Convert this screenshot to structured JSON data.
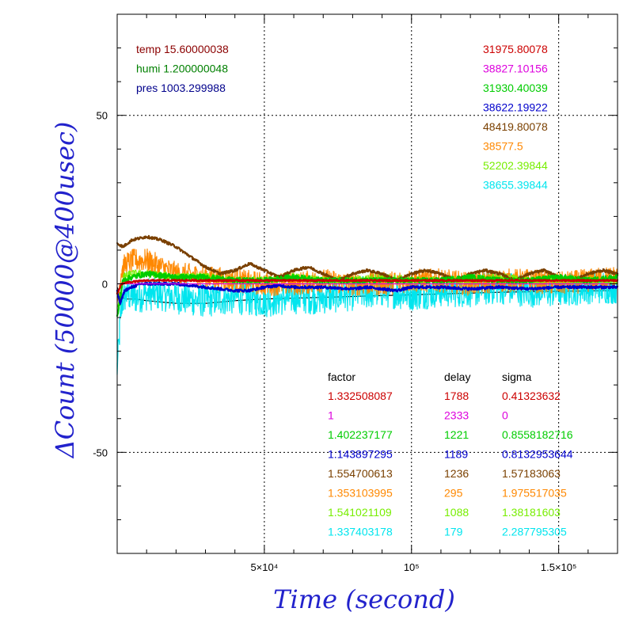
{
  "chart_data": {
    "type": "line",
    "xlabel": "Time (second)",
    "ylabel": "ΔCount (50000@400usec)",
    "xlim": [
      0,
      170000
    ],
    "ylim": [
      -80,
      80
    ],
    "xticks": [
      {
        "value": 50000,
        "label": "5×10⁴"
      },
      {
        "value": 100000,
        "label": "10⁵"
      },
      {
        "value": 150000,
        "label": "1.5×10⁵"
      }
    ],
    "yticks": [
      {
        "value": 50,
        "label": "50"
      },
      {
        "value": 0,
        "label": "0"
      },
      {
        "value": -50,
        "label": "-50"
      }
    ],
    "grid": "dotted",
    "env": [
      {
        "label": "temp 15.60000038",
        "color": "#8b0000"
      },
      {
        "label": "humi 1.200000048",
        "color": "#008000"
      },
      {
        "label": "pres 1003.299988",
        "color": "#00008b"
      }
    ],
    "baselines": [
      {
        "value": "31975.80078",
        "color": "#cc0000"
      },
      {
        "value": "38827.10156",
        "color": "#dd00dd"
      },
      {
        "value": "31930.40039",
        "color": "#00cc00"
      },
      {
        "value": "38622.19922",
        "color": "#0000cc"
      },
      {
        "value": "48419.80078",
        "color": "#7a4000"
      },
      {
        "value": "38577.5",
        "color": "#ff8800"
      },
      {
        "value": "52202.39844",
        "color": "#77ee00"
      },
      {
        "value": "38655.39844",
        "color": "#00e5ee"
      }
    ],
    "table_headers": [
      "factor",
      "delay",
      "sigma"
    ],
    "table_rows": [
      {
        "factor": "1.332508087",
        "delay": "1788",
        "sigma": "0.41323632",
        "color": "#cc0000"
      },
      {
        "factor": "1",
        "delay": "2333",
        "sigma": "0",
        "color": "#dd00dd"
      },
      {
        "factor": "1.402237177",
        "delay": "1221",
        "sigma": "0.8558182716",
        "color": "#00cc00"
      },
      {
        "factor": "1.143897295",
        "delay": "1189",
        "sigma": "0.8132953644",
        "color": "#0000cc"
      },
      {
        "factor": "1.554700613",
        "delay": "1236",
        "sigma": "1.57183063",
        "color": "#7a4000"
      },
      {
        "factor": "1.353103995",
        "delay": "295",
        "sigma": "1.975517035",
        "color": "#ff8800"
      },
      {
        "factor": "1.541021109",
        "delay": "1088",
        "sigma": "1.38181603",
        "color": "#77ee00"
      },
      {
        "factor": "1.337403178",
        "delay": "179",
        "sigma": "2.287795305",
        "color": "#00e5ee"
      }
    ],
    "series": [
      {
        "color": "#000000",
        "noise": 0.0,
        "x": [
          0,
          1500,
          3000,
          6000,
          10000,
          20000,
          30000,
          40000,
          50000,
          70000,
          90000,
          110000,
          130000,
          150000,
          170000
        ],
        "y": [
          -1,
          -4,
          -4.5,
          -4.5,
          -5,
          -5.8,
          -5.8,
          -5,
          -4.5,
          -4,
          -3.5,
          -3,
          -2.5,
          -2.2,
          -2
        ]
      },
      {
        "color": "#00e5ee",
        "noise": 5.0,
        "x": [
          0,
          1500,
          3000,
          6000,
          10000,
          15000,
          20000,
          30000,
          40000,
          50000,
          60000,
          70000,
          80000,
          90000,
          100000,
          110000,
          120000,
          130000,
          140000,
          150000,
          160000,
          170000
        ],
        "y": [
          -25,
          -6,
          -3,
          -4,
          -3,
          -3,
          -4,
          -5,
          -4,
          -5,
          -4,
          -4,
          -3,
          -2,
          -3,
          -2,
          -2,
          -1,
          -2,
          -2,
          -1,
          -1
        ]
      },
      {
        "color": "#ff8800",
        "noise": 3.5,
        "x": [
          0,
          1500,
          3000,
          6000,
          10000,
          15000,
          20000,
          30000,
          40000,
          50000,
          60000,
          70000,
          80000,
          90000,
          100000,
          110000,
          120000,
          130000,
          140000,
          150000,
          160000,
          170000
        ],
        "y": [
          -5,
          4,
          6,
          7,
          7,
          5,
          3,
          2,
          1,
          0,
          0,
          1,
          0,
          0,
          1,
          1,
          0,
          1,
          1,
          0,
          1,
          2
        ]
      },
      {
        "color": "#77ee00",
        "noise": 1.2,
        "x": [
          0,
          2000,
          5000,
          10000,
          20000,
          30000,
          40000,
          50000,
          60000,
          70000,
          80000,
          90000,
          100000,
          110000,
          120000,
          130000,
          140000,
          150000,
          160000,
          170000
        ],
        "y": [
          -8,
          2,
          3,
          3,
          2,
          2,
          1,
          1,
          2,
          1,
          1,
          2,
          1,
          1,
          1,
          2,
          1,
          1,
          1,
          1
        ]
      },
      {
        "color": "#7a4000",
        "noise": 0.4,
        "x": [
          0,
          2000,
          5000,
          10000,
          15000,
          20000,
          25000,
          30000,
          35000,
          40000,
          45000,
          50000,
          55000,
          60000,
          65000,
          70000,
          75000,
          80000,
          85000,
          90000,
          95000,
          100000,
          105000,
          110000,
          115000,
          120000,
          125000,
          130000,
          135000,
          140000,
          145000,
          150000,
          155000,
          160000,
          165000,
          170000
        ],
        "y": [
          12,
          11,
          13,
          14,
          13,
          11,
          8,
          5,
          3,
          4,
          6,
          4,
          2,
          4,
          5,
          3,
          1,
          3,
          4,
          3,
          1,
          3,
          4,
          3,
          1,
          3,
          4,
          3,
          1,
          3,
          4,
          2,
          1,
          3,
          4,
          3
        ]
      },
      {
        "color": "#00cc00",
        "noise": 0.8,
        "x": [
          0,
          2000,
          5000,
          10000,
          20000,
          30000,
          40000,
          50000,
          60000,
          70000,
          80000,
          90000,
          100000,
          110000,
          120000,
          130000,
          140000,
          150000,
          160000,
          170000
        ],
        "y": [
          -10,
          1,
          2,
          3,
          2,
          2,
          1,
          1,
          2,
          1,
          1,
          1,
          1,
          1,
          2,
          1,
          1,
          2,
          1,
          2
        ]
      },
      {
        "color": "#0000cc",
        "noise": 0.4,
        "x": [
          0,
          1000,
          2500,
          5000,
          8000,
          12000,
          20000,
          30000,
          40000,
          45000,
          50000,
          55000,
          60000,
          70000,
          80000,
          85000,
          90000,
          95000,
          100000,
          110000,
          120000,
          130000,
          140000,
          150000,
          160000,
          170000
        ],
        "y": [
          -2,
          -6,
          -2,
          -1,
          0,
          0,
          0,
          -1,
          -2,
          -2,
          -1,
          -0.5,
          -1,
          -1,
          -1.5,
          -1,
          -1.5,
          -2,
          -1,
          -1,
          -1.5,
          -1,
          -1.5,
          -1,
          -1,
          -1
        ]
      },
      {
        "color": "#dd00dd",
        "noise": 0.0,
        "x": [
          0,
          170000
        ],
        "y": [
          0,
          0
        ]
      },
      {
        "color": "#cc0000",
        "noise": 0.25,
        "x": [
          0,
          1500,
          4000,
          10000,
          20000,
          40000,
          60000,
          80000,
          100000,
          120000,
          140000,
          160000,
          170000
        ],
        "y": [
          -3,
          0,
          0.5,
          1,
          1,
          1,
          1,
          1,
          1,
          1,
          1,
          1,
          1
        ]
      }
    ]
  }
}
